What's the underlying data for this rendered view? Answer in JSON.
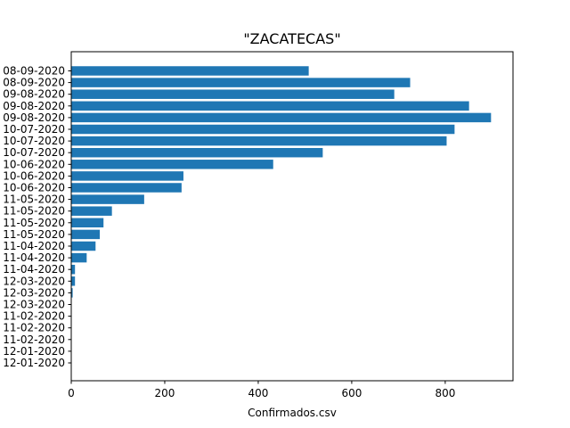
{
  "chart_data": {
    "type": "bar",
    "orientation": "horizontal",
    "title": "\"ZACATECAS\"",
    "xlabel": "Confirmados.csv",
    "ylabel": "",
    "xlim": [
      0,
      945
    ],
    "xticks": [
      0,
      200,
      400,
      600,
      800
    ],
    "grid": false,
    "bar_color": "#1f77b4",
    "categories": [
      "12-01-2020",
      "12-01-2020",
      "11-02-2020",
      "11-02-2020",
      "11-02-2020",
      "12-03-2020",
      "12-03-2020",
      "12-03-2020",
      "11-04-2020",
      "11-04-2020",
      "11-04-2020",
      "11-05-2020",
      "11-05-2020",
      "11-05-2020",
      "11-05-2020",
      "10-06-2020",
      "10-06-2020",
      "10-06-2020",
      "10-07-2020",
      "10-07-2020",
      "10-07-2020",
      "09-08-2020",
      "09-08-2020",
      "09-08-2020",
      "08-09-2020",
      "08-09-2020"
    ],
    "values": [
      0,
      0,
      0,
      0,
      0,
      0,
      3,
      8,
      8,
      33,
      52,
      61,
      69,
      87,
      156,
      236,
      240,
      432,
      538,
      803,
      820,
      898,
      851,
      691,
      725,
      508
    ]
  }
}
